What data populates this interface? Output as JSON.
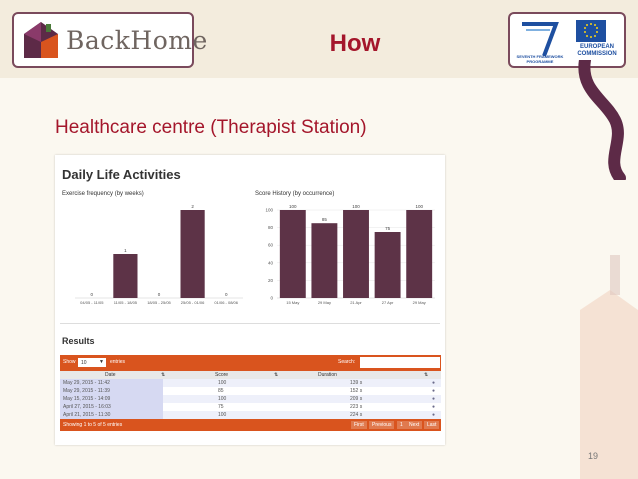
{
  "header": {
    "logo_text": "BackHome",
    "title": "How",
    "fp7_text": "SEVENTH FRAMEWORK PROGRAMME",
    "eu_text": "EUROPEAN COMMISSION"
  },
  "subtitle": "Healthcare centre (Therapist Station)",
  "screenshot": {
    "title": "Daily Life Activities",
    "panel_left_title": "Exercise frequency (by weeks)",
    "panel_right_title": "Score History (by occurrence)",
    "results_title": "Results",
    "table": {
      "show_label": "Show",
      "show_value": "10",
      "entries_label": "entries",
      "search_label": "Search:",
      "headers": [
        "Date",
        "Score",
        "Duration"
      ],
      "rows": [
        {
          "date": "May 29, 2015 - 11:42",
          "score": "100",
          "duration": "139 s"
        },
        {
          "date": "May 29, 2015 - 11:39",
          "score": "85",
          "duration": "152 s"
        },
        {
          "date": "May 15, 2015 - 14:09",
          "score": "100",
          "duration": "209 s"
        },
        {
          "date": "April 27, 2015 - 16:03",
          "score": "75",
          "duration": "223 s"
        },
        {
          "date": "April 21, 2015 - 11:30",
          "score": "100",
          "duration": "224 s"
        }
      ],
      "footer_info": "Showing 1 to 5 of 5 entries",
      "pagination": [
        "First",
        "Previous",
        "1",
        "Next",
        "Last"
      ]
    }
  },
  "chart_data": [
    {
      "type": "bar",
      "title": "Exercise frequency (by weeks)",
      "categories": [
        "04/05 - 11/05",
        "11/05 - 18/05",
        "18/05 - 25/05",
        "25/05 - 01/06",
        "01/06 - 08/06"
      ],
      "values": [
        0,
        1,
        0,
        2,
        0
      ],
      "data_labels": [
        "0",
        "1",
        "0",
        "2",
        "0"
      ],
      "ylim": [
        0,
        2
      ],
      "grid": false
    },
    {
      "type": "bar",
      "title": "Score History (by occurrence)",
      "categories": [
        "15 May",
        "29 May",
        "21 Apr",
        "27 Apr",
        "29 May"
      ],
      "values": [
        100,
        85,
        100,
        75,
        100
      ],
      "data_labels": [
        "100",
        "85",
        "100",
        "75",
        "100"
      ],
      "yticks": [
        "0",
        "20",
        "40",
        "60",
        "80",
        "100"
      ],
      "ylim": [
        0,
        100
      ],
      "grid": true
    }
  ],
  "colors": {
    "accent": "#a4162b",
    "bar": "#5d3347",
    "table_bar": "#d9541e",
    "row_highlight": "#d6d9f2"
  },
  "page_number": "19"
}
